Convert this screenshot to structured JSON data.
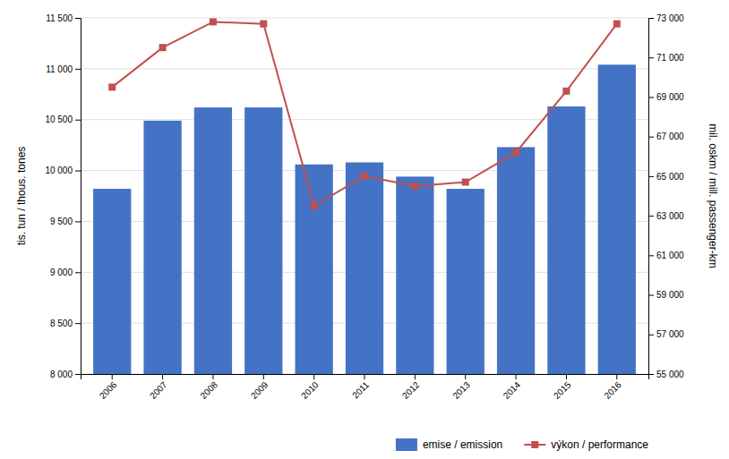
{
  "chart_data": {
    "type": "bar",
    "categories": [
      "2006",
      "2007",
      "2008",
      "2009",
      "2010",
      "2011",
      "2012",
      "2013",
      "2014",
      "2015",
      "2016"
    ],
    "series": [
      {
        "name": "emise / emission",
        "type": "bar",
        "color": "#4472C4",
        "values": [
          9820,
          10490,
          10620,
          10620,
          10060,
          10080,
          9940,
          9820,
          10230,
          10630,
          11040
        ]
      },
      {
        "name": "výkon / performance",
        "type": "line",
        "color": "#C0504D",
        "marker": "square",
        "axis": "y2",
        "values": [
          69500,
          71500,
          72800,
          72700,
          63500,
          65000,
          64500,
          64700,
          66200,
          69300,
          72700
        ]
      }
    ],
    "ylabel": "tis. tun / thous. tones",
    "y2label": "mil. oskm / mill. passenger-km",
    "ylim": [
      8000,
      11500
    ],
    "yticks": [
      {
        "value": 8000,
        "label": "8 000"
      },
      {
        "value": 8500,
        "label": "8 500"
      },
      {
        "value": 9000,
        "label": "9 000"
      },
      {
        "value": 9500,
        "label": "9 500"
      },
      {
        "value": 10000,
        "label": "10 000"
      },
      {
        "value": 10500,
        "label": "10 500"
      },
      {
        "value": 11000,
        "label": "11 000"
      },
      {
        "value": 11500,
        "label": "11 500"
      }
    ],
    "y2lim": [
      55000,
      73000
    ],
    "y2ticks": [
      {
        "value": 55000,
        "label": "55 000"
      },
      {
        "value": 57000,
        "label": "57 000"
      },
      {
        "value": 59000,
        "label": "59 000"
      },
      {
        "value": 61000,
        "label": "61 000"
      },
      {
        "value": 63000,
        "label": "63 000"
      },
      {
        "value": 65000,
        "label": "65 000"
      },
      {
        "value": 67000,
        "label": "67 000"
      },
      {
        "value": 69000,
        "label": "69 000"
      },
      {
        "value": 71000,
        "label": "71 000"
      },
      {
        "value": 73000,
        "label": "73 000"
      }
    ],
    "grid": true,
    "legend": "lower right"
  }
}
